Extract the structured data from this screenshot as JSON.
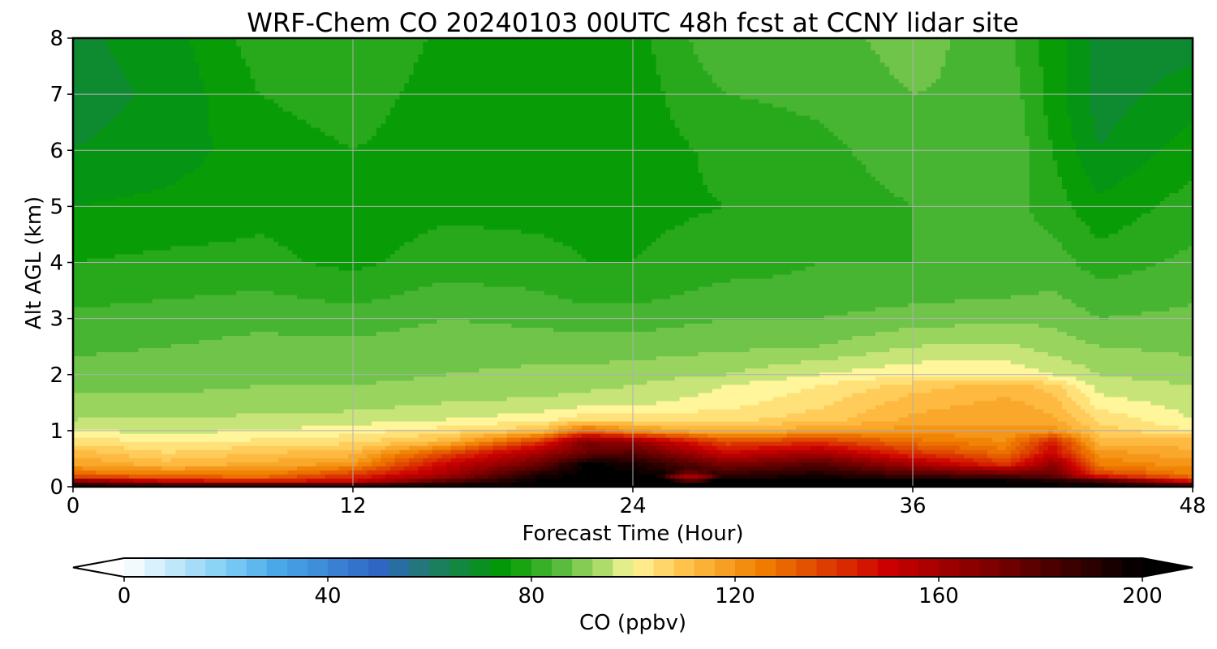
{
  "chart_data": {
    "type": "heatmap",
    "plot_style": "filled contour (time-height cross section)",
    "title": "WRF-Chem CO  20240103 00UTC 48h fcst at CCNY lidar site",
    "xlabel": "Forecast Time (Hour)",
    "ylabel": "Alt AGL (km)",
    "xlim": [
      0,
      48
    ],
    "ylim": [
      0,
      8
    ],
    "xticks": [
      0,
      12,
      24,
      36,
      48
    ],
    "yticks": [
      0,
      1,
      2,
      3,
      4,
      5,
      6,
      7,
      8
    ],
    "grid": true,
    "colorbar": {
      "label": "CO  (ppbv)",
      "orientation": "horizontal",
      "position": "bottom",
      "vmin": 0,
      "vmax": 200,
      "ticks": [
        0,
        40,
        80,
        120,
        160,
        200
      ],
      "extend": "both",
      "color_stops": [
        {
          "value": 0,
          "color": "#ffffff"
        },
        {
          "value": 20,
          "color": "#7fcff5"
        },
        {
          "value": 30,
          "color": "#4aa8e8"
        },
        {
          "value": 50,
          "color": "#2f66c4"
        },
        {
          "value": 60,
          "color": "#1f7a6a"
        },
        {
          "value": 75,
          "color": "#009a00"
        },
        {
          "value": 85,
          "color": "#4fb838"
        },
        {
          "value": 95,
          "color": "#b8e070"
        },
        {
          "value": 100,
          "color": "#fff59a"
        },
        {
          "value": 110,
          "color": "#ffc24a"
        },
        {
          "value": 125,
          "color": "#f08000"
        },
        {
          "value": 150,
          "color": "#cc0000"
        },
        {
          "value": 175,
          "color": "#6a0000"
        },
        {
          "value": 200,
          "color": "#000000"
        }
      ],
      "under_color": "#ffffff",
      "over_color": "#000000"
    },
    "x_hours": [
      0,
      4,
      8,
      12,
      16,
      20,
      22,
      24,
      28,
      32,
      36,
      40,
      42,
      44,
      48
    ],
    "y_km": [
      0,
      0.1,
      0.2,
      0.4,
      0.6,
      0.8,
      1.0,
      1.2,
      1.5,
      1.8,
      2.0,
      2.5,
      3.0,
      3.5,
      4.0,
      5.0,
      6.0,
      7.0,
      8.0
    ],
    "values_ppbv": [
      [
        200,
        200,
        200,
        200,
        200,
        200,
        200,
        200,
        200,
        200,
        200,
        200,
        200,
        200,
        200
      ],
      [
        168,
        150,
        145,
        150,
        180,
        200,
        200,
        200,
        200,
        200,
        200,
        200,
        195,
        185,
        145
      ],
      [
        130,
        128,
        125,
        140,
        160,
        195,
        200,
        200,
        190,
        195,
        185,
        180,
        175,
        140,
        125
      ],
      [
        118,
        112,
        115,
        120,
        150,
        175,
        200,
        195,
        170,
        180,
        160,
        140,
        165,
        125,
        120
      ],
      [
        112,
        106,
        110,
        112,
        135,
        160,
        175,
        180,
        150,
        160,
        140,
        128,
        150,
        120,
        115
      ],
      [
        104,
        102,
        103,
        105,
        112,
        140,
        170,
        165,
        135,
        140,
        128,
        122,
        145,
        112,
        112
      ],
      [
        98,
        97,
        98,
        100,
        104,
        110,
        130,
        120,
        112,
        118,
        120,
        118,
        120,
        108,
        102
      ],
      [
        94,
        94,
        95,
        96,
        98,
        100,
        105,
        104,
        105,
        108,
        115,
        118,
        115,
        105,
        98
      ],
      [
        91,
        91,
        92,
        92,
        94,
        95,
        96,
        97,
        100,
        105,
        112,
        115,
        112,
        100,
        96
      ],
      [
        89,
        89,
        90,
        90,
        91,
        92,
        93,
        94,
        98,
        102,
        108,
        112,
        108,
        96,
        94
      ],
      [
        88,
        88,
        88,
        89,
        90,
        91,
        91,
        92,
        94,
        98,
        101,
        101,
        98,
        94,
        92
      ],
      [
        85,
        86,
        87,
        87,
        88,
        88,
        88,
        88,
        89,
        90,
        94,
        95,
        92,
        90,
        89
      ],
      [
        83,
        84,
        85,
        84,
        86,
        85,
        84,
        84,
        86,
        86,
        88,
        89,
        89,
        86,
        87
      ],
      [
        80,
        81,
        82,
        80,
        83,
        82,
        80,
        80,
        83,
        83,
        84,
        85,
        86,
        83,
        85
      ],
      [
        78,
        79,
        79,
        77,
        80,
        79,
        78,
        78,
        80,
        82,
        82,
        83,
        84,
        80,
        83
      ],
      [
        74,
        75,
        77,
        76,
        77,
        77,
        77,
        77,
        78,
        80,
        82,
        84,
        80,
        75,
        80
      ],
      [
        70,
        72,
        76,
        78,
        76,
        76,
        76,
        76,
        79,
        81,
        84,
        86,
        78,
        70,
        76
      ],
      [
        68,
        71,
        78,
        80,
        76,
        76,
        76,
        76,
        82,
        83,
        86,
        85,
        76,
        68,
        72
      ],
      [
        69,
        72,
        80,
        82,
        77,
        76,
        76,
        76,
        86,
        84,
        88,
        83,
        76,
        68,
        68
      ]
    ],
    "blobs": [
      {
        "x": 26.5,
        "y": 0.18,
        "rx": 1.3,
        "ry": 0.1,
        "value": 160
      }
    ]
  }
}
